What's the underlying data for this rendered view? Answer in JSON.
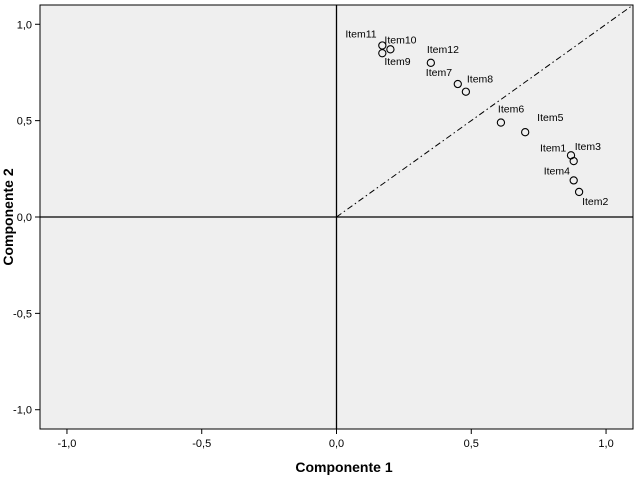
{
  "chart_data": {
    "type": "scatter",
    "xlabel": "Componente 1",
    "ylabel": "Componente 2",
    "xlim": [
      -1.1,
      1.1
    ],
    "ylim": [
      -1.1,
      1.1
    ],
    "x_ticks": [
      -1.0,
      -0.5,
      0.0,
      0.5,
      1.0
    ],
    "y_ticks": [
      -1.0,
      -0.5,
      0.0,
      0.5,
      1.0
    ],
    "x_tick_labels": [
      "-1,0",
      "-0,5",
      "0,0",
      "0,5",
      "1,0"
    ],
    "y_tick_labels": [
      "-1,0",
      "-0,5",
      "0,0",
      "0,5",
      "1,0"
    ],
    "plot_background": "#efefef",
    "grid": false,
    "reference_lines": [
      "x=0",
      "y=0",
      "y=x"
    ],
    "points": [
      {
        "label": "Item11",
        "x": 0.17,
        "y": 0.89
      },
      {
        "label": "Item10",
        "x": 0.2,
        "y": 0.87
      },
      {
        "label": "Item9",
        "x": 0.17,
        "y": 0.85
      },
      {
        "label": "Item12",
        "x": 0.35,
        "y": 0.8
      },
      {
        "label": "Item7",
        "x": 0.45,
        "y": 0.69
      },
      {
        "label": "Item8",
        "x": 0.48,
        "y": 0.65
      },
      {
        "label": "Item6",
        "x": 0.61,
        "y": 0.49
      },
      {
        "label": "Item5",
        "x": 0.7,
        "y": 0.44
      },
      {
        "label": "Item1",
        "x": 0.87,
        "y": 0.32
      },
      {
        "label": "Item3",
        "x": 0.88,
        "y": 0.29
      },
      {
        "label": "Item4",
        "x": 0.88,
        "y": 0.19
      },
      {
        "label": "Item2",
        "x": 0.9,
        "y": 0.13
      }
    ]
  }
}
